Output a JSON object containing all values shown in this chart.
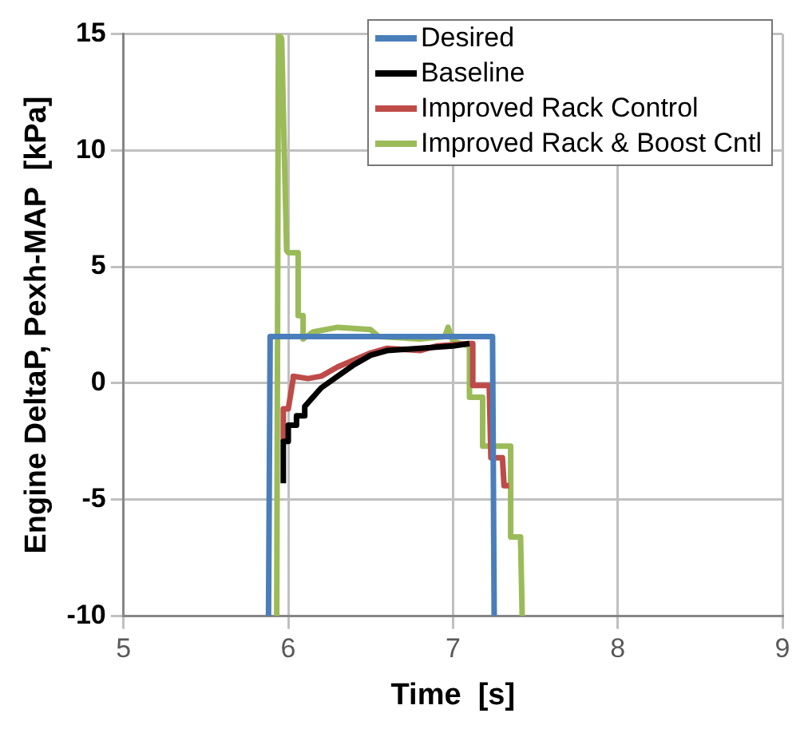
{
  "chart_data": {
    "type": "line",
    "xlabel": "Time  [s]",
    "ylabel": "Engine DeltaP, Pexh-MAP  [kPa]",
    "xlim": [
      5,
      9
    ],
    "xticks": [
      5,
      6,
      7,
      8,
      9
    ],
    "ylim": [
      -10,
      15
    ],
    "yticks": [
      -10,
      -5,
      0,
      5,
      10,
      15
    ],
    "grid": true,
    "legend": "top right",
    "marker": "none",
    "series": [
      {
        "name": "Desired",
        "color": "#4a7ebb",
        "x": [
          5.88,
          5.89,
          7.24,
          7.25
        ],
        "values": [
          -10,
          2,
          2,
          -10
        ]
      },
      {
        "name": "Baseline",
        "color": "#000000",
        "x": [
          5.97,
          5.97,
          6.0,
          6.0,
          6.05,
          6.05,
          6.1,
          6.1,
          6.15,
          6.2,
          6.3,
          6.4,
          6.5,
          6.6,
          6.8,
          7.0,
          7.1
        ],
        "values": [
          -4.3,
          -2.5,
          -2.5,
          -1.8,
          -1.8,
          -1.4,
          -1.4,
          -1.0,
          -0.6,
          -0.2,
          0.3,
          0.8,
          1.2,
          1.4,
          1.5,
          1.6,
          1.7
        ]
      },
      {
        "name": "Improved Rack Control",
        "color": "#be4b48",
        "x": [
          5.97,
          5.97,
          6.0,
          6.03,
          6.03,
          6.12,
          6.2,
          6.3,
          6.4,
          6.5,
          6.6,
          6.8,
          6.9,
          7.1,
          7.12,
          7.12,
          7.22,
          7.23,
          7.3,
          7.31,
          7.34
        ],
        "values": [
          -2.5,
          -1.1,
          -1.1,
          0.2,
          0.3,
          0.2,
          0.3,
          0.7,
          1.0,
          1.3,
          1.5,
          1.4,
          1.6,
          1.7,
          1.7,
          -0.1,
          -0.1,
          -3.2,
          -3.2,
          -4.4,
          -4.4
        ]
      },
      {
        "name": "Improved Rack & Boost Cntl",
        "color": "#9bbb59",
        "x": [
          5.93,
          5.94,
          5.96,
          5.99,
          6.0,
          6.06,
          6.06,
          6.09,
          6.09,
          6.15,
          6.3,
          6.5,
          6.55,
          6.8,
          6.95,
          6.97,
          7.0,
          7.1,
          7.1,
          7.18,
          7.18,
          7.35,
          7.35,
          7.41,
          7.42
        ],
        "values": [
          -10,
          15,
          14.8,
          5.7,
          5.6,
          5.6,
          2.9,
          2.9,
          1.9,
          2.2,
          2.4,
          2.3,
          2.0,
          1.9,
          2.0,
          2.4,
          1.8,
          1.6,
          -0.6,
          -0.6,
          -2.7,
          -2.7,
          -6.6,
          -6.6,
          -10
        ]
      }
    ]
  }
}
